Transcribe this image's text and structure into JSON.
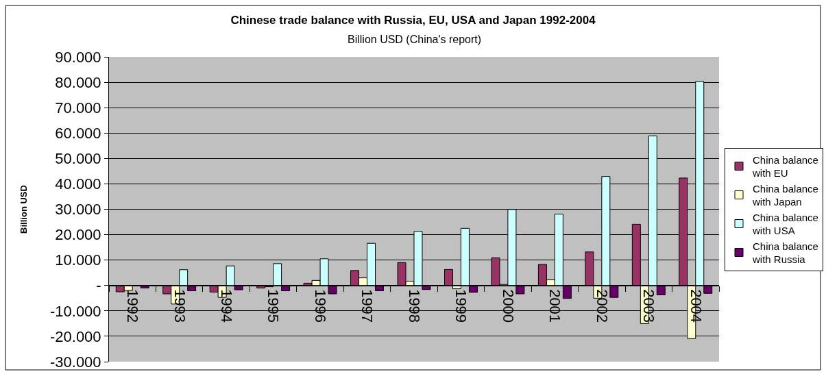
{
  "chart_data": {
    "type": "bar",
    "title": "Chinese trade balance with Russia, EU, USA and Japan 1992-2004",
    "subtitle": "Billion USD (China's report)",
    "ylabel": "Billion USD",
    "categories": [
      "1992",
      "1993",
      "1994",
      "1995",
      "1996",
      "1997",
      "1998",
      "1999",
      "2000",
      "2001",
      "2002",
      "2003",
      "2004"
    ],
    "series": [
      {
        "name": "China balance with EU",
        "color": "#993366",
        "values": [
          -2.5,
          -3.3,
          -2.6,
          -1.0,
          0.9,
          5.9,
          9.0,
          6.3,
          10.9,
          8.3,
          13.2,
          24.1,
          42.3
        ]
      },
      {
        "name": "China balance with Japan",
        "color": "#ffffcc",
        "values": [
          -2.0,
          -7.3,
          -4.7,
          -0.5,
          2.0,
          3.0,
          1.7,
          -1.3,
          0.4,
          2.2,
          -5.0,
          -15.0,
          -20.9
        ]
      },
      {
        "name": "China balance with USA",
        "color": "#ccffff",
        "values": [
          null,
          6.2,
          7.7,
          8.6,
          10.5,
          16.6,
          21.3,
          22.5,
          29.9,
          28.1,
          42.9,
          58.9,
          80.3
        ]
      },
      {
        "name": "China balance with Russia",
        "color": "#660066",
        "values": [
          -1.0,
          -2.1,
          -1.7,
          -2.1,
          -3.3,
          -2.1,
          -1.6,
          -2.7,
          -3.3,
          -5.1,
          -4.7,
          -3.7,
          -3.1
        ]
      }
    ],
    "ylim": [
      -30,
      90
    ],
    "yticks": [
      {
        "value": -30,
        "label": "-30.000"
      },
      {
        "value": -20,
        "label": "-20.000"
      },
      {
        "value": -10,
        "label": "-10.000"
      },
      {
        "value": 0,
        "label": "-"
      },
      {
        "value": 10,
        "label": "10.000"
      },
      {
        "value": 20,
        "label": "20.000"
      },
      {
        "value": 30,
        "label": "30.000"
      },
      {
        "value": 40,
        "label": "40.000"
      },
      {
        "value": 50,
        "label": "50.000"
      },
      {
        "value": 60,
        "label": "60.000"
      },
      {
        "value": 70,
        "label": "70.000"
      },
      {
        "value": 80,
        "label": "80.000"
      },
      {
        "value": 90,
        "label": "90.000"
      }
    ],
    "grid": "y",
    "legend": "right"
  }
}
